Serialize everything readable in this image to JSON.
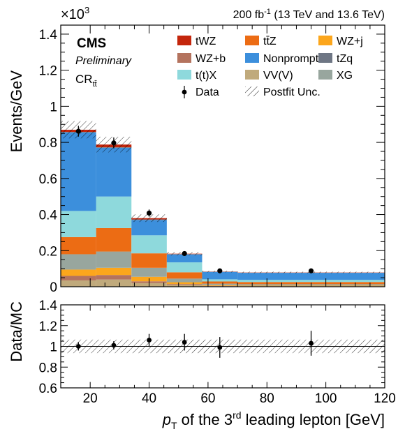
{
  "header": {
    "lumi": "200 fb",
    "lumi_sup": "-1",
    "lumi_rest": " (13 TeV and 13.6 TeV)",
    "scale_base": "×10",
    "scale_exp": "3"
  },
  "labels": {
    "cms": "CMS",
    "preliminary": "Preliminary",
    "region_base": "CR",
    "region_sub": "tt̄"
  },
  "colors": {
    "tWZ": "#c4260c",
    "ttZ": "#ec6c14",
    "WZj": "#fca61c",
    "WZb": "#b4735e",
    "Nonprompt": "#3c8fdc",
    "tZq": "#6e7684",
    "ttX": "#8ed9dc",
    "VVV": "#c0aa7c",
    "XG": "#98a69e"
  },
  "chart_data": [
    {
      "type": "bar",
      "stacked": true,
      "ylabel": "Events/GeV",
      "ylim": [
        0,
        1.45
      ],
      "yticks": [
        "0",
        "0.2",
        "0.4",
        "0.6",
        "0.8",
        "1",
        "1.2",
        "1.4"
      ],
      "y_scale_note": "×10^3",
      "x_bin_edges": [
        10,
        22,
        34,
        46,
        58,
        70,
        120
      ],
      "xlim": [
        10,
        120
      ],
      "series": [
        {
          "name": "VV(V)",
          "key": "VVV",
          "values": [
            0.035,
            0.04,
            0.02,
            0.01,
            0.003,
            0.002
          ]
        },
        {
          "name": "WZ+b",
          "key": "WZb",
          "values": [
            0.025,
            0.025,
            0.01,
            0.005,
            0.002,
            0.001
          ]
        },
        {
          "name": "WZ+j",
          "key": "WZj",
          "values": [
            0.035,
            0.04,
            0.025,
            0.01,
            0.004,
            0.003
          ]
        },
        {
          "name": "XG",
          "key": "XG",
          "values": [
            0.085,
            0.09,
            0.05,
            0.02,
            0.008,
            0.008
          ]
        },
        {
          "name": "tt̄Z",
          "key": "ttZ",
          "values": [
            0.095,
            0.13,
            0.08,
            0.035,
            0.012,
            0.012
          ]
        },
        {
          "name": "t(t)X",
          "key": "ttX",
          "values": [
            0.145,
            0.175,
            0.1,
            0.055,
            0.012,
            0.012
          ]
        },
        {
          "name": "Nonprompt",
          "key": "Nonprompt",
          "values": [
            0.435,
            0.27,
            0.085,
            0.044,
            0.041,
            0.039
          ]
        },
        {
          "name": "tZq",
          "key": "tZq",
          "values": [
            0.003,
            0.003,
            0.003,
            0.002,
            0.001,
            0.001
          ]
        },
        {
          "name": "tWZ",
          "key": "tWZ",
          "values": [
            0.012,
            0.015,
            0.007,
            0.002,
            0.001,
            0.001
          ]
        }
      ],
      "data": {
        "name": "Data",
        "x": [
          16,
          28,
          40,
          52,
          64,
          95
        ],
        "y": [
          0.862,
          0.797,
          0.408,
          0.184,
          0.088,
          0.088
        ],
        "yerr": [
          0.03,
          0.03,
          0.02,
          0.012,
          0.008,
          0.005
        ]
      },
      "unc": {
        "name": "Postfit Unc.",
        "rel": 0.055
      },
      "legend": {
        "placement": "top-right",
        "columns": [
          [
            "tWZ",
            "WZ+b",
            "t(t)X",
            "Data"
          ],
          [
            "tt̄Z",
            "Nonprompt",
            "VV(V)",
            "Postfit Unc."
          ],
          [
            "WZ+j",
            "tZq",
            "XG"
          ]
        ]
      }
    },
    {
      "type": "scatter",
      "ylabel": "Data/MC",
      "ylim": [
        0.6,
        1.4
      ],
      "yticks": [
        "0.6",
        "0.8",
        "1",
        "1.2",
        "1.4"
      ],
      "xlim": [
        10,
        120
      ],
      "xticks": [
        "20",
        "40",
        "60",
        "80",
        "100",
        "120"
      ],
      "xlabel_base": "p",
      "xlabel_sub": "T",
      "xlabel_mid": " of the 3",
      "xlabel_sup": "rd",
      "xlabel_end": " leading lepton [GeV]",
      "x": [
        16,
        28,
        40,
        52,
        64,
        95
      ],
      "y": [
        1.0,
        1.01,
        1.06,
        1.04,
        0.99,
        1.03
      ],
      "yerr": [
        0.04,
        0.04,
        0.06,
        0.08,
        0.1,
        0.12
      ],
      "xerr_edges": [
        [
          10,
          22
        ],
        [
          22,
          34
        ],
        [
          34,
          46
        ],
        [
          46,
          58
        ],
        [
          58,
          70
        ],
        [
          70,
          120
        ]
      ],
      "unc_band": [
        0.935,
        1.065
      ]
    }
  ]
}
